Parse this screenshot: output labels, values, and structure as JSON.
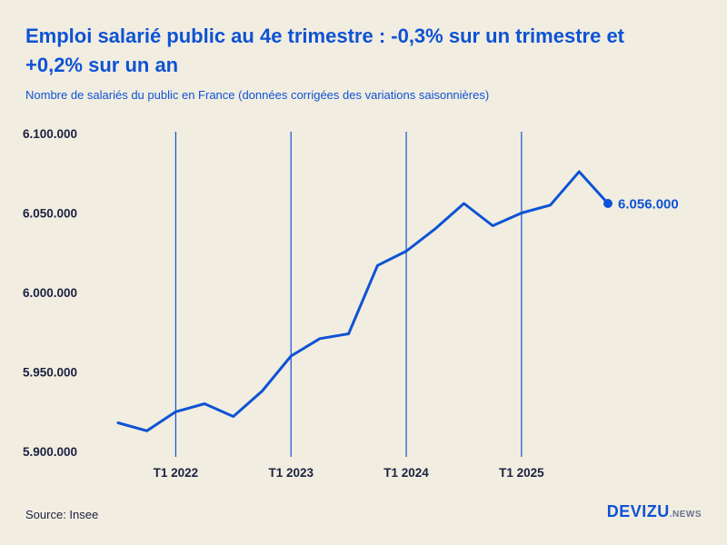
{
  "page": {
    "background": "#f2ede1",
    "accent": "#0d53d4",
    "axis_text": "#1a2240"
  },
  "footer": {
    "source": "Source: Insee",
    "brand": "DEVIZU",
    "brand_suffix": ".NEWS"
  },
  "chart_data": {
    "type": "line",
    "title": "Emploi salarié public au 4e trimestre : -0,3% sur un trimestre et +0,2% sur un an",
    "subtitle": "Nombre de salariés du public en France (données corrigées des variations saisonnières)",
    "x": [
      "T3 2021",
      "T4 2021",
      "T1 2022",
      "T2 2022",
      "T3 2022",
      "T4 2022",
      "T1 2023",
      "T2 2023",
      "T3 2023",
      "T4 2023",
      "T1 2024",
      "T2 2024",
      "T3 2024",
      "T4 2024",
      "T1 2025",
      "T2 2025",
      "T3 2025",
      "T4 2025"
    ],
    "values": [
      5918000,
      5913000,
      5925000,
      5930000,
      5922000,
      5938000,
      5960000,
      5971000,
      5974000,
      6017000,
      6026000,
      6040000,
      6056000,
      6042000,
      6050000,
      6055000,
      6076000,
      6056000
    ],
    "ylim": [
      5900000,
      6100000
    ],
    "y_ticks": [
      "6.100.000",
      "6.050.000",
      "6.000.000",
      "5.950.000",
      "5.900.000"
    ],
    "x_tick_labels": [
      "T1 2022",
      "T1 2023",
      "T1 2024",
      "T1 2025"
    ],
    "x_tick_indices": [
      2,
      6,
      10,
      14
    ],
    "end_label": "6.056.000",
    "line_color": "#0d53d4",
    "axis_color": "#1a2240",
    "grid": "vertical-only",
    "legend": "none",
    "xlabel": "",
    "ylabel": ""
  }
}
